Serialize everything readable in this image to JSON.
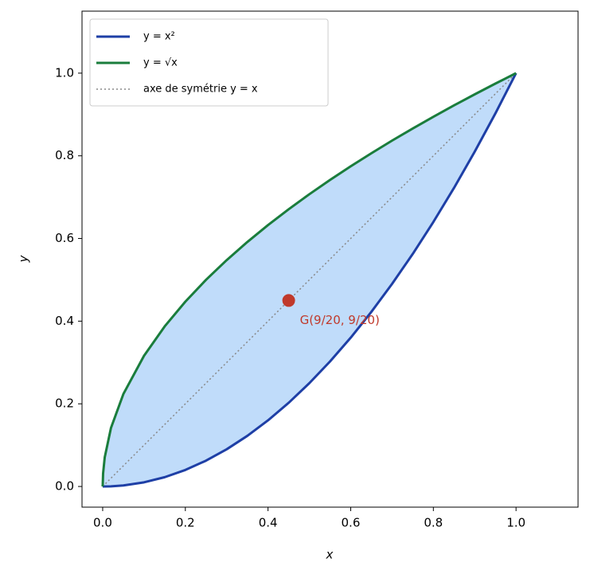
{
  "chart_data": {
    "type": "line",
    "x_label": "x",
    "y_label": "y",
    "x": [
      0,
      0.001,
      0.005,
      0.02,
      0.05,
      0.1,
      0.15,
      0.2,
      0.25,
      0.3,
      0.35,
      0.4,
      0.45,
      0.5,
      0.55,
      0.6,
      0.65,
      0.7,
      0.75,
      0.8,
      0.85,
      0.9,
      0.95,
      1
    ],
    "series": [
      {
        "name": "y = x²",
        "color": "#1e3fa6",
        "style": "solid",
        "values": [
          0,
          1e-06,
          2.5e-05,
          0.0004,
          0.0025,
          0.01,
          0.0225,
          0.04,
          0.0625,
          0.09,
          0.1225,
          0.16,
          0.2025,
          0.25,
          0.3025,
          0.36,
          0.4225,
          0.49,
          0.5625,
          0.64,
          0.7225,
          0.81,
          0.9025,
          1
        ]
      },
      {
        "name": "y = √x",
        "color": "#1a7d3c",
        "style": "solid",
        "values": [
          0,
          0.0316,
          0.0707,
          0.1414,
          0.2236,
          0.3162,
          0.3873,
          0.4472,
          0.5,
          0.5477,
          0.5916,
          0.6325,
          0.6708,
          0.7071,
          0.7416,
          0.7746,
          0.8062,
          0.8367,
          0.866,
          0.8944,
          0.922,
          0.9487,
          0.9747,
          1
        ]
      },
      {
        "name": "axe de symétrie y = x",
        "color": "#888888",
        "style": "dotted",
        "values": [
          0,
          0.001,
          0.005,
          0.02,
          0.05,
          0.1,
          0.15,
          0.2,
          0.25,
          0.3,
          0.35,
          0.4,
          0.45,
          0.5,
          0.55,
          0.6,
          0.65,
          0.7,
          0.75,
          0.8,
          0.85,
          0.9,
          0.95,
          1
        ]
      }
    ],
    "fill_color": "#c0dcfa",
    "annotation": {
      "text": "G(9/20,  9/20)",
      "x": 0.45,
      "y": 0.45,
      "color": "#c0392b"
    },
    "xlim": [
      -0.05,
      1.15
    ],
    "ylim": [
      -0.05,
      1.15
    ],
    "xticks": [
      {
        "value": 0,
        "label": "0.0"
      },
      0.2,
      0.4,
      0.6,
      0.8,
      {
        "value": 1,
        "label": "1.0"
      }
    ],
    "yticks": [
      {
        "value": 0,
        "label": "0.0"
      },
      0.2,
      0.4,
      0.6,
      0.8,
      {
        "value": 1,
        "label": "1.0"
      }
    ],
    "grid": false,
    "legend": "upper left"
  }
}
